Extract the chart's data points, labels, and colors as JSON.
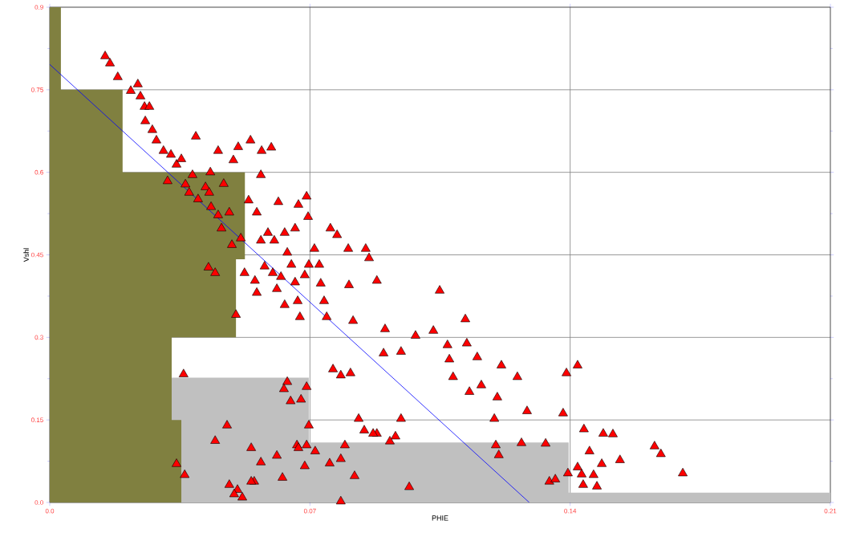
{
  "chart_data": {
    "type": "scatter",
    "xlabel": "PHIE",
    "ylabel": "Vshl",
    "xlim": [
      0,
      0.21
    ],
    "ylim": [
      0,
      0.9
    ],
    "xticks": [
      {
        "value": 0,
        "label": "0.0"
      },
      0.07,
      0.14,
      0.21
    ],
    "yticks": [
      {
        "value": 0,
        "label": "0.0"
      },
      0.15,
      0.3,
      0.45,
      0.6,
      0.75,
      0.9
    ],
    "grid": true,
    "series": [
      {
        "type": "area",
        "color": "#c0c0c0",
        "x": [
          0.0328,
          0.0697,
          0.0697,
          0.1396,
          0.1396,
          0.21
        ],
        "values": [
          0.227,
          0.227,
          0.109,
          0.109,
          0.018,
          0.018
        ]
      },
      {
        "type": "area",
        "color": "#808040",
        "x": [
          0,
          0.003,
          0.003,
          0.0196,
          0.0196,
          0.0525,
          0.0525,
          0.0501,
          0.0501,
          0.0328,
          0.0328,
          0.0354,
          0.0354
        ],
        "values": [
          0.9,
          0.9,
          0.75,
          0.75,
          0.6,
          0.6,
          0.442,
          0.442,
          0.3,
          0.3,
          0.15,
          0.15,
          0
        ]
      },
      {
        "marker": "triangle",
        "color": "#ff0000",
        "x": [
          0.0149,
          0.0162,
          0.0183,
          0.0218,
          0.0237,
          0.0244,
          0.0255,
          0.0257,
          0.0268,
          0.0276,
          0.0287,
          0.0306,
          0.0317,
          0.0326,
          0.0341,
          0.0354,
          0.0365,
          0.0375,
          0.0384,
          0.0393,
          0.0399,
          0.0419,
          0.0432,
          0.0429,
          0.0434,
          0.0453,
          0.0453,
          0.0468,
          0.0483,
          0.0494,
          0.0507,
          0.054,
          0.057,
          0.0596,
          0.0568,
          0.0427,
          0.0445,
          0.0462,
          0.049,
          0.0514,
          0.0535,
          0.0557,
          0.0568,
          0.0587,
          0.0604,
          0.0615,
          0.0632,
          0.0639,
          0.066,
          0.0669,
          0.0691,
          0.0695,
          0.0501,
          0.0524,
          0.0552,
          0.0557,
          0.0578,
          0.06,
          0.0611,
          0.0622,
          0.0632,
          0.065,
          0.066,
          0.0667,
          0.0673,
          0.0686,
          0.0697,
          0.0712,
          0.0725,
          0.0729,
          0.0738,
          0.0745,
          0.0755,
          0.0773,
          0.0803,
          0.0805,
          0.0816,
          0.085,
          0.0859,
          0.088,
          0.0902,
          0.1049,
          0.1032,
          0.0984,
          0.1118,
          0.1122,
          0.107,
          0.1075,
          0.1085,
          0.115,
          0.1129,
          0.1161,
          0.1215,
          0.1204,
          0.1258,
          0.1284,
          0.1334,
          0.1269,
          0.139,
          0.142,
          0.1381,
          0.1196,
          0.12,
          0.1208,
          0.1344,
          0.136,
          0.1394,
          0.142,
          0.1437,
          0.1452,
          0.1472,
          0.1485,
          0.1489,
          0.1515,
          0.1534,
          0.1627,
          0.1644,
          0.1703,
          0.1431,
          0.1435,
          0.1463,
          0.093,
          0.088,
          0.0846,
          0.0831,
          0.087,
          0.0915,
          0.0945,
          0.0945,
          0.0898,
          0.0809,
          0.0783,
          0.0762,
          0.0794,
          0.0753,
          0.0783,
          0.082,
          0.0967,
          0.0783,
          0.0697,
          0.0691,
          0.0714,
          0.0686,
          0.0676,
          0.0691,
          0.0639,
          0.063,
          0.0648,
          0.0665,
          0.0669,
          0.0611,
          0.0626,
          0.0568,
          0.0542,
          0.055,
          0.0542,
          0.0483,
          0.0505,
          0.0496,
          0.0518,
          0.0445,
          0.0477,
          0.036,
          0.0341,
          0.0363
        ],
        "values": [
          0.811,
          0.798,
          0.773,
          0.748,
          0.76,
          0.738,
          0.719,
          0.693,
          0.719,
          0.677,
          0.658,
          0.639,
          0.584,
          0.632,
          0.614,
          0.624,
          0.578,
          0.563,
          0.595,
          0.665,
          0.551,
          0.573,
          0.6,
          0.563,
          0.537,
          0.639,
          0.522,
          0.579,
          0.527,
          0.622,
          0.646,
          0.658,
          0.639,
          0.645,
          0.595,
          0.427,
          0.417,
          0.498,
          0.468,
          0.48,
          0.549,
          0.527,
          0.476,
          0.49,
          0.476,
          0.546,
          0.49,
          0.454,
          0.498,
          0.541,
          0.556,
          0.519,
          0.341,
          0.417,
          0.403,
          0.381,
          0.429,
          0.417,
          0.388,
          0.41,
          0.359,
          0.432,
          0.4,
          0.366,
          0.337,
          0.413,
          0.432,
          0.461,
          0.432,
          0.398,
          0.366,
          0.337,
          0.498,
          0.486,
          0.461,
          0.395,
          0.33,
          0.461,
          0.444,
          0.403,
          0.315,
          0.385,
          0.312,
          0.303,
          0.333,
          0.289,
          0.286,
          0.26,
          0.228,
          0.264,
          0.201,
          0.213,
          0.249,
          0.191,
          0.228,
          0.166,
          0.107,
          0.108,
          0.235,
          0.249,
          0.162,
          0.152,
          0.104,
          0.086,
          0.038,
          0.042,
          0.053,
          0.064,
          0.133,
          0.093,
          0.029,
          0.07,
          0.125,
          0.124,
          0.077,
          0.102,
          0.088,
          0.053,
          0.051,
          0.032,
          0.05,
          0.12,
          0.125,
          0.131,
          0.152,
          0.125,
          0.111,
          0.152,
          0.274,
          0.271,
          0.235,
          0.231,
          0.242,
          0.104,
          0.071,
          0.079,
          0.048,
          0.028,
          0.002,
          0.14,
          0.104,
          0.093,
          0.066,
          0.187,
          0.21,
          0.219,
          0.206,
          0.184,
          0.104,
          0.099,
          0.085,
          0.045,
          0.073,
          0.099,
          0.038,
          0.038,
          0.032,
          0.023,
          0.015,
          0.009,
          0.112,
          0.14,
          0.233,
          0.07,
          0.05
        ]
      },
      {
        "type": "line",
        "color": "#0000ff",
        "x": [
          0,
          0.129
        ],
        "values": [
          0.796,
          0
        ]
      }
    ]
  }
}
